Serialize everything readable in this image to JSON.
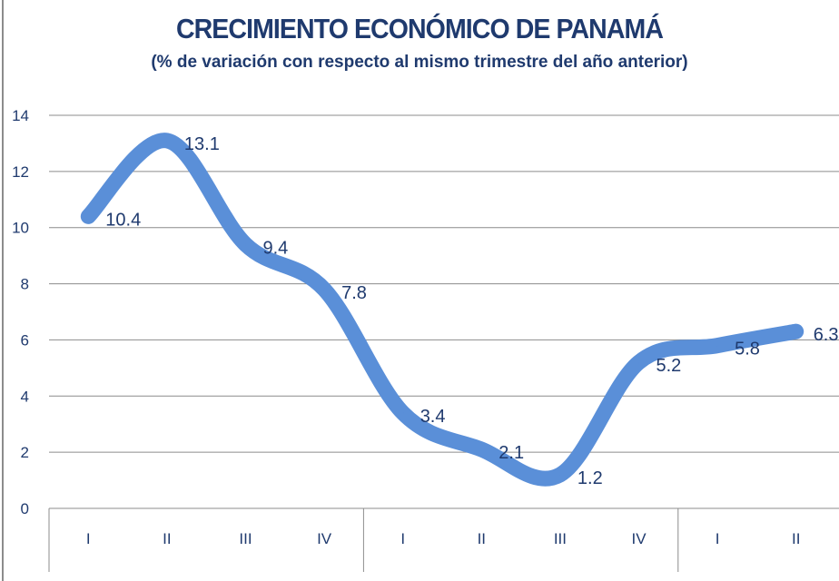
{
  "chart_data": {
    "type": "line",
    "title": "CRECIMIENTO ECONÓMICO DE PANAMÁ",
    "subtitle": "(% de variación con respecto al mismo trimestre del año anterior)",
    "categories": [
      "I",
      "II",
      "III",
      "IV",
      "I",
      "II",
      "III",
      "IV",
      "I",
      "II"
    ],
    "series": [
      {
        "values": [
          10.4,
          13.1,
          9.4,
          7.8,
          3.4,
          2.1,
          1.2,
          5.2,
          5.8,
          6.3
        ]
      }
    ],
    "data_labels": [
      "10.4",
      "13.1",
      "9.4",
      "7.8",
      "3.4",
      "2.1",
      "1.2",
      "5.2",
      "5.8",
      "6.3"
    ],
    "ylim": [
      0,
      14
    ],
    "yticks": [
      "0",
      "2",
      "4",
      "6",
      "8",
      "10",
      "12",
      "14"
    ],
    "grid": true,
    "smooth": true,
    "line_color": "#5a8fd8",
    "text_color": "#1f3a6e"
  }
}
